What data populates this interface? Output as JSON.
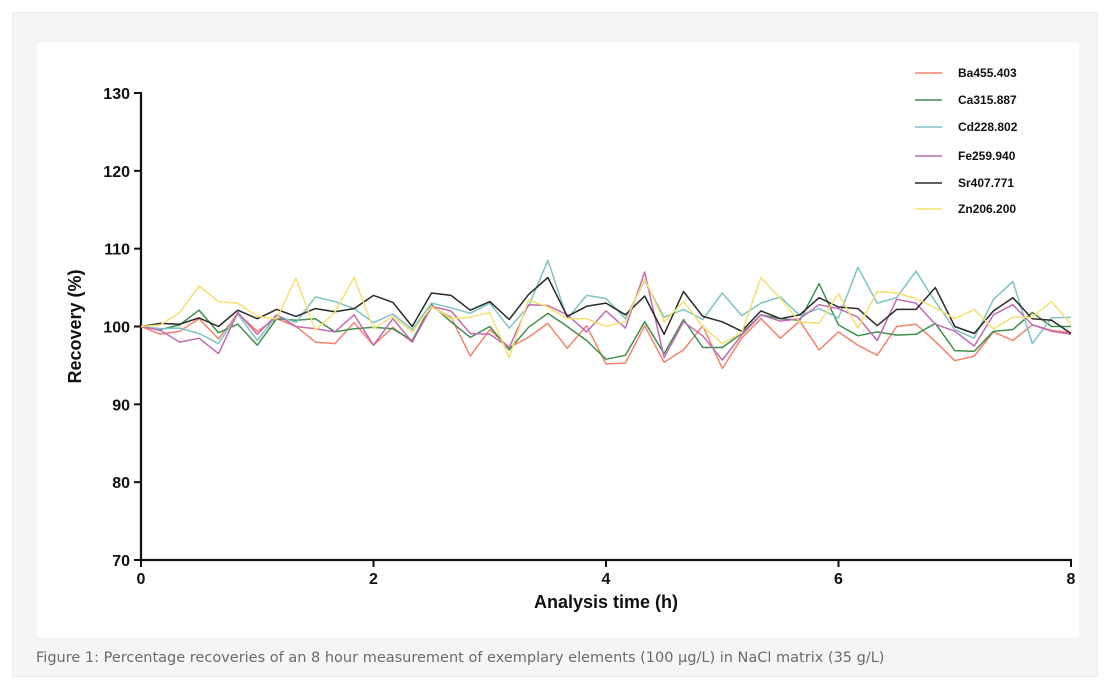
{
  "caption": "Figure 1: Percentage recoveries of an 8 hour measurement of exemplary elements (100 µg/L) in NaCl matrix (35 g/L)",
  "chart_data": {
    "type": "line",
    "xlabel": "Analysis time (h)",
    "ylabel": "Recovery (%)",
    "xlim": [
      0,
      8
    ],
    "ylim": [
      70,
      130
    ],
    "xticks": [
      0,
      2,
      4,
      6,
      8
    ],
    "yticks": [
      70,
      80,
      90,
      100,
      110,
      120,
      130
    ],
    "grid": false,
    "legend_position": "top-right",
    "x": [
      0,
      0.167,
      0.333,
      0.5,
      0.667,
      0.833,
      1.0,
      1.167,
      1.333,
      1.5,
      1.667,
      1.833,
      2.0,
      2.167,
      2.333,
      2.5,
      2.667,
      2.833,
      3.0,
      3.167,
      3.333,
      3.5,
      3.667,
      3.833,
      4.0,
      4.167,
      4.333,
      4.5,
      4.667,
      4.833,
      5.0,
      5.167,
      5.333,
      5.5,
      5.667,
      5.833,
      6.0,
      6.167,
      6.333,
      6.5,
      6.667,
      6.833,
      7.0,
      7.167,
      7.333,
      7.5,
      7.667,
      7.833,
      8.0
    ],
    "series": [
      {
        "name": "Ba455.403",
        "color": "#f4836b",
        "values": [
          100,
          99.0,
          99.4,
          101.0,
          98.4,
          101.7,
          99.4,
          101.0,
          100.0,
          98.0,
          97.8,
          100.5,
          97.6,
          99.9,
          98.0,
          102.5,
          101.2,
          96.2,
          99.6,
          97.3,
          98.6,
          100.4,
          97.2,
          100.1,
          95.2,
          95.3,
          100.1,
          95.4,
          97.0,
          100.1,
          94.6,
          98.5,
          101.0,
          98.5,
          100.7,
          97.0,
          99.3,
          97.6,
          96.3,
          100.0,
          100.3,
          98.1,
          95.6,
          96.2,
          99.3,
          98.2,
          100.2,
          99.5,
          99.2
        ]
      },
      {
        "name": "Ca315.887",
        "color": "#3f8f4f",
        "values": [
          100,
          99.6,
          100.2,
          102.1,
          99.2,
          100.3,
          97.6,
          101.0,
          100.8,
          101.0,
          99.3,
          99.7,
          99.9,
          99.7,
          98.2,
          102.8,
          100.6,
          98.6,
          100.0,
          97.0,
          99.9,
          101.7,
          100.0,
          98.2,
          95.8,
          96.3,
          100.6,
          96.5,
          100.9,
          97.3,
          97.3,
          99.1,
          101.5,
          101.0,
          100.8,
          105.5,
          100.2,
          98.8,
          99.3,
          98.9,
          99.0,
          100.4,
          96.9,
          96.8,
          99.4,
          99.6,
          101.8,
          100.0,
          100.0
        ]
      },
      {
        "name": "Cd228.802",
        "color": "#7fc4c4",
        "values": [
          100,
          99.7,
          99.8,
          99.1,
          97.8,
          101.6,
          98.2,
          101.4,
          100.5,
          103.8,
          103.2,
          102.3,
          100.5,
          101.6,
          99.6,
          103.0,
          102.4,
          101.7,
          103.0,
          99.8,
          102.6,
          108.5,
          101.0,
          104.0,
          103.6,
          101.0,
          105.9,
          101.2,
          102.2,
          100.9,
          104.3,
          101.4,
          103.0,
          103.8,
          101.4,
          102.3,
          101.1,
          107.6,
          103.0,
          103.7,
          107.1,
          103.2,
          99.6,
          98.5,
          103.5,
          105.8,
          97.8,
          101.1,
          101.2
        ]
      },
      {
        "name": "Fe259.940",
        "color": "#c36ab4",
        "values": [
          100,
          99.5,
          98.0,
          98.5,
          96.5,
          101.8,
          99.0,
          101.5,
          100.0,
          99.7,
          99.3,
          101.5,
          97.6,
          101.0,
          98.0,
          102.6,
          102.0,
          99.1,
          99.0,
          97.3,
          102.8,
          102.7,
          101.5,
          99.3,
          102.0,
          99.8,
          107.0,
          96.0,
          100.6,
          98.8,
          95.7,
          98.9,
          101.5,
          100.7,
          101.0,
          102.8,
          102.3,
          101.2,
          98.2,
          103.5,
          103.0,
          100.3,
          99.4,
          97.5,
          101.5,
          102.8,
          100.2,
          99.4,
          99.0
        ]
      },
      {
        "name": "Sr407.771",
        "color": "#2a2a2a",
        "values": [
          100,
          100.4,
          100.3,
          101.1,
          100.0,
          102.1,
          101.0,
          102.2,
          101.3,
          102.3,
          101.9,
          102.3,
          104.0,
          103.1,
          100.0,
          104.3,
          104.0,
          102.1,
          103.2,
          100.9,
          104.1,
          106.3,
          101.3,
          102.6,
          103.0,
          101.5,
          103.9,
          99.0,
          104.5,
          101.3,
          100.6,
          99.4,
          102.0,
          101.0,
          101.5,
          103.7,
          102.5,
          102.3,
          100.1,
          102.2,
          102.2,
          105.0,
          100.0,
          99.1,
          102.0,
          103.7,
          101.0,
          100.8,
          99.1
        ]
      },
      {
        "name": "Zn206.200",
        "color": "#f5e070",
        "values": [
          100,
          100.2,
          101.8,
          105.2,
          103.2,
          103.0,
          101.3,
          101.0,
          106.2,
          99.5,
          101.8,
          106.3,
          99.7,
          101.3,
          99.3,
          102.6,
          101.0,
          101.2,
          101.8,
          96.0,
          103.4,
          102.5,
          101.0,
          101.0,
          100.0,
          100.6,
          106.1,
          100.6,
          103.2,
          100.0,
          97.8,
          99.2,
          106.3,
          103.6,
          100.6,
          100.4,
          104.2,
          99.8,
          104.5,
          104.3,
          103.6,
          102.4,
          101.0,
          102.2,
          99.7,
          101.2,
          101.2,
          103.2,
          100.3
        ]
      }
    ]
  }
}
